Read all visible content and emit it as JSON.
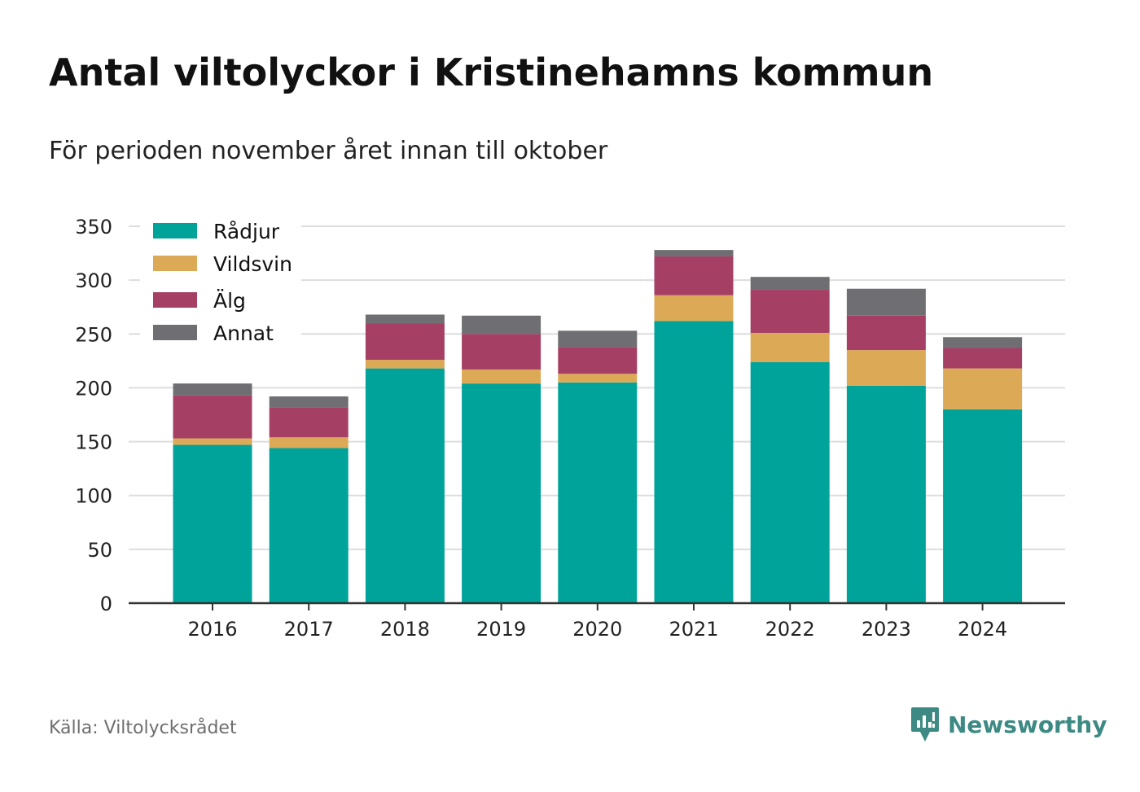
{
  "title": "Antal viltolyckor i Kristinehamns kommun",
  "subtitle": "För perioden november året innan till oktober",
  "source": "Källa: Viltolycksrådet",
  "brand": {
    "name": "Newsworthy",
    "icon": "newsworthy-logo-icon",
    "color": "#3d8a84"
  },
  "chart_data": {
    "type": "bar",
    "stacked": true,
    "categories": [
      "2016",
      "2017",
      "2018",
      "2019",
      "2020",
      "2021",
      "2022",
      "2023",
      "2024"
    ],
    "series": [
      {
        "name": "Rådjur",
        "color": "#00a39a",
        "values": [
          147,
          144,
          218,
          204,
          205,
          262,
          224,
          202,
          180
        ]
      },
      {
        "name": "Vildsvin",
        "color": "#dcaa56",
        "values": [
          6,
          10,
          8,
          13,
          8,
          24,
          27,
          33,
          38
        ]
      },
      {
        "name": "Älg",
        "color": "#a53f64",
        "values": [
          40,
          28,
          34,
          33,
          25,
          36,
          40,
          32,
          19
        ]
      },
      {
        "name": "Annat",
        "color": "#6f6f73",
        "values": [
          11,
          10,
          8,
          17,
          15,
          6,
          12,
          25,
          10
        ]
      }
    ],
    "ylim": [
      0,
      350
    ],
    "yticks": [
      0,
      50,
      100,
      150,
      200,
      250,
      300,
      350
    ],
    "xlabel": "",
    "ylabel": "",
    "grid": true,
    "legend": "top-left"
  }
}
